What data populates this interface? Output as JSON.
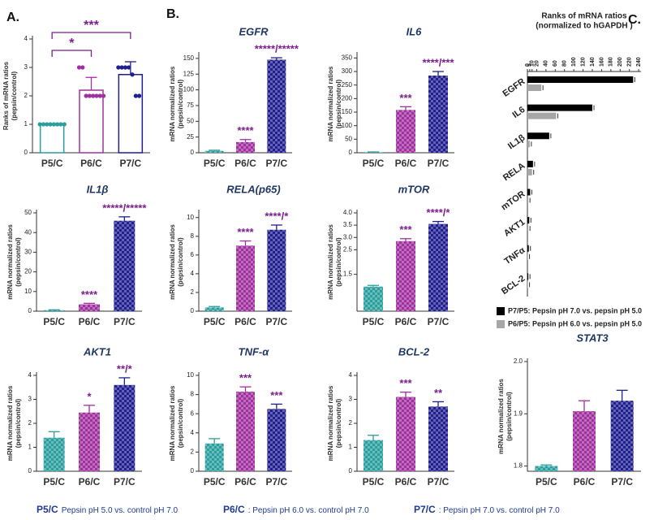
{
  "chart_data": [
    {
      "type": "bar",
      "panel": "A.",
      "categories": [
        "P5/C",
        "P6/C",
        "P7/C"
      ],
      "values": [
        1,
        2.2,
        2.75
      ],
      "errors": [
        0,
        0.45,
        0.45
      ],
      "points": [
        [
          1,
          1,
          1,
          1,
          1,
          1,
          1,
          1
        ],
        [
          3,
          3,
          2,
          2,
          2,
          2,
          2,
          2
        ],
        [
          3,
          3,
          3,
          3,
          2.75,
          2,
          2
        ]
      ],
      "ylabel": [
        "Ranks of mRNA ratios",
        "(pepsin/control)"
      ],
      "ylim": [
        0,
        4
      ],
      "yticks": [
        0,
        1,
        2,
        3,
        4
      ],
      "colors": [
        "#2a9d9d",
        "#a0309f",
        "#1f1f8f"
      ],
      "style": "outline",
      "brackets": [
        {
          "from": 0,
          "to": 2,
          "label": "***"
        },
        {
          "from": 0,
          "to": 1,
          "label": "*"
        }
      ]
    },
    {
      "type": "bar",
      "panel": "B.",
      "title": "EGFR",
      "categories": [
        "P5/C",
        "P6/C",
        "P7/C"
      ],
      "values": [
        3,
        17,
        148
      ],
      "errors": [
        1,
        4,
        3
      ],
      "annotations": [
        null,
        "****",
        "*****/*****"
      ],
      "ylabel": [
        "mRNA normalized ratios",
        "(pepsin/control)"
      ],
      "ylim": [
        0,
        155
      ],
      "yticks": [
        0,
        25,
        50,
        75,
        100,
        125,
        150
      ],
      "colors": [
        "#2a9d9d",
        "#a0309f",
        "#1f1f8f"
      ],
      "style": "fill"
    },
    {
      "type": "bar",
      "title": "IL6",
      "categories": [
        "P5/C",
        "P6/C",
        "P7/C"
      ],
      "values": [
        2,
        158,
        285
      ],
      "errors": [
        1,
        12,
        15
      ],
      "annotations": [
        null,
        "***",
        "****/***"
      ],
      "ylabel": [
        "mRNA normalized ratios",
        "(pepsin/control)"
      ],
      "ylim": [
        0,
        360
      ],
      "yticks": [
        0,
        50,
        100,
        150,
        200,
        250,
        300,
        350
      ],
      "colors": [
        "#2a9d9d",
        "#a0309f",
        "#1f1f8f"
      ],
      "style": "fill"
    },
    {
      "type": "bar",
      "title": "IL1β",
      "categories": [
        "P5/C",
        "P6/C",
        "P7/C"
      ],
      "values": [
        0.5,
        3.5,
        46
      ],
      "errors": [
        0.2,
        0.5,
        2
      ],
      "annotations": [
        null,
        "****",
        "*****/*****"
      ],
      "ylabel": [
        "mRNA normalized ratios",
        "(pepsin/control)"
      ],
      "ylim": [
        0,
        50
      ],
      "yticks": [
        0,
        10,
        20,
        30,
        40,
        50
      ],
      "colors": [
        "#2a9d9d",
        "#a0309f",
        "#1f1f8f"
      ],
      "style": "fill"
    },
    {
      "type": "bar",
      "title": "RELA(p65)",
      "categories": [
        "P5/C",
        "P6/C",
        "P7/C"
      ],
      "values": [
        0.4,
        7,
        8.7
      ],
      "errors": [
        0.1,
        0.5,
        0.5
      ],
      "annotations": [
        null,
        "****",
        "****/*"
      ],
      "ylabel": [
        "mRNA normalized ratios",
        "(pepsin/control)"
      ],
      "ylim": [
        0,
        10.5
      ],
      "yticks": [
        0,
        2,
        4,
        6,
        8,
        10
      ],
      "colors": [
        "#2a9d9d",
        "#a0309f",
        "#1f1f8f"
      ],
      "style": "fill"
    },
    {
      "type": "bar",
      "title": "mTOR",
      "categories": [
        "P5/C",
        "P6/C",
        "P7/C"
      ],
      "values": [
        1,
        2.85,
        3.55
      ],
      "errors": [
        0.05,
        0.1,
        0.1
      ],
      "annotations": [
        null,
        "***",
        "****/*"
      ],
      "ylabel": [
        "mRNA normalized ratios",
        "(pepsin/control)"
      ],
      "ylim": [
        0,
        4
      ],
      "yticks": [
        1.5,
        2.5,
        {
          "value": 3,
          "label": "3.0"
        },
        3.5,
        {
          "value": 4,
          "label": "4.0"
        }
      ],
      "colors": [
        "#2a9d9d",
        "#a0309f",
        "#1f1f8f"
      ],
      "style": "fill"
    },
    {
      "type": "bar",
      "title": "AKT1",
      "categories": [
        "P5/C",
        "P6/C",
        "P7/C"
      ],
      "values": [
        1.4,
        2.45,
        3.6
      ],
      "errors": [
        0.25,
        0.3,
        0.3
      ],
      "annotations": [
        null,
        "*",
        "**/*"
      ],
      "ylabel": [
        "mRNA normalized ratios",
        "(pepsin/control)"
      ],
      "ylim": [
        0,
        4
      ],
      "yticks": [
        0,
        1,
        2,
        3,
        4
      ],
      "colors": [
        "#2a9d9d",
        "#a0309f",
        "#1f1f8f"
      ],
      "style": "fill"
    },
    {
      "type": "bar",
      "title": "TNF-α",
      "categories": [
        "P5/C",
        "P6/C",
        "P7/C"
      ],
      "values": [
        2.9,
        8.3,
        6.5
      ],
      "errors": [
        0.5,
        0.5,
        0.5
      ],
      "annotations": [
        null,
        "***",
        "***"
      ],
      "ylabel": [
        "mRNA normalized ratios",
        "(pepsin/control)"
      ],
      "ylim": [
        0,
        10
      ],
      "yticks": [
        0,
        2,
        4,
        6,
        8,
        10
      ],
      "colors": [
        "#2a9d9d",
        "#a0309f",
        "#1f1f8f"
      ],
      "style": "fill"
    },
    {
      "type": "bar",
      "title": "BCL-2",
      "categories": [
        "P5/C",
        "P6/C",
        "P7/C"
      ],
      "values": [
        1.3,
        3.1,
        2.7
      ],
      "errors": [
        0.2,
        0.2,
        0.2
      ],
      "annotations": [
        null,
        "***",
        "**"
      ],
      "ylabel": [
        "mRNA normalized ratios",
        "(pepsin/control)"
      ],
      "ylim": [
        0,
        4
      ],
      "yticks": [
        0,
        1,
        2,
        3,
        4
      ],
      "colors": [
        "#2a9d9d",
        "#a0309f",
        "#1f1f8f"
      ],
      "style": "fill"
    },
    {
      "type": "bar",
      "title": "STAT3",
      "categories": [
        "P5/C",
        "P6/C",
        "P7/C"
      ],
      "values": [
        1.8,
        1.905,
        1.925
      ],
      "errors": [
        0.002,
        0.02,
        0.02
      ],
      "ylabel": [
        "mRNA normalized ratios",
        "(pepsin/control)"
      ],
      "ylim": [
        1.79,
        2
      ],
      "yticks": [
        1.8,
        1.9,
        {
          "value": 2,
          "label": "2.0"
        }
      ],
      "colors": [
        "#2a9d9d",
        "#a0309f",
        "#1f1f8f"
      ],
      "style": "fill"
    },
    {
      "type": "barh",
      "panel": "C.",
      "title": "Ranks of mRNA ratios",
      "subtitle": "(normalized to hGAPDH )",
      "categories": [
        "EGFR",
        "IL6",
        "IL1β",
        "RELA",
        "mTOR",
        "AKT1",
        "TNFα",
        "BCL-2"
      ],
      "series": [
        {
          "name": "P7/P5: Pepsin pH 7.0 vs. pepsin pH 5.0",
          "color": "#000000",
          "values": [
            228,
            140,
            47,
            12,
            6,
            4,
            3,
            2
          ]
        },
        {
          "name": "P6/P5: Pepsin pH 6.0 vs. pepsin pH 5.0",
          "color": "#a6a6a6",
          "values": [
            30,
            62,
            5,
            10,
            2,
            2,
            1,
            1
          ]
        }
      ],
      "xlim": [
        0,
        245
      ],
      "xticks": [
        0,
        5,
        10,
        20,
        40,
        60,
        80,
        100,
        120,
        140,
        160,
        180,
        200,
        220,
        240
      ]
    }
  ],
  "legend_notes": [
    {
      "code": "P5/C",
      "text": "Pepsin pH 5.0 vs. control pH 7.0",
      "color": "#1f3a93"
    },
    {
      "code": "P6/C",
      "text": ": Pepsin pH 6.0 vs. control pH 7.0",
      "color": "#1f3a93"
    },
    {
      "code": "P7/C",
      "text": ": Pepsin pH 7.0 vs. control pH 7.0",
      "color": "#1f3a93"
    }
  ]
}
